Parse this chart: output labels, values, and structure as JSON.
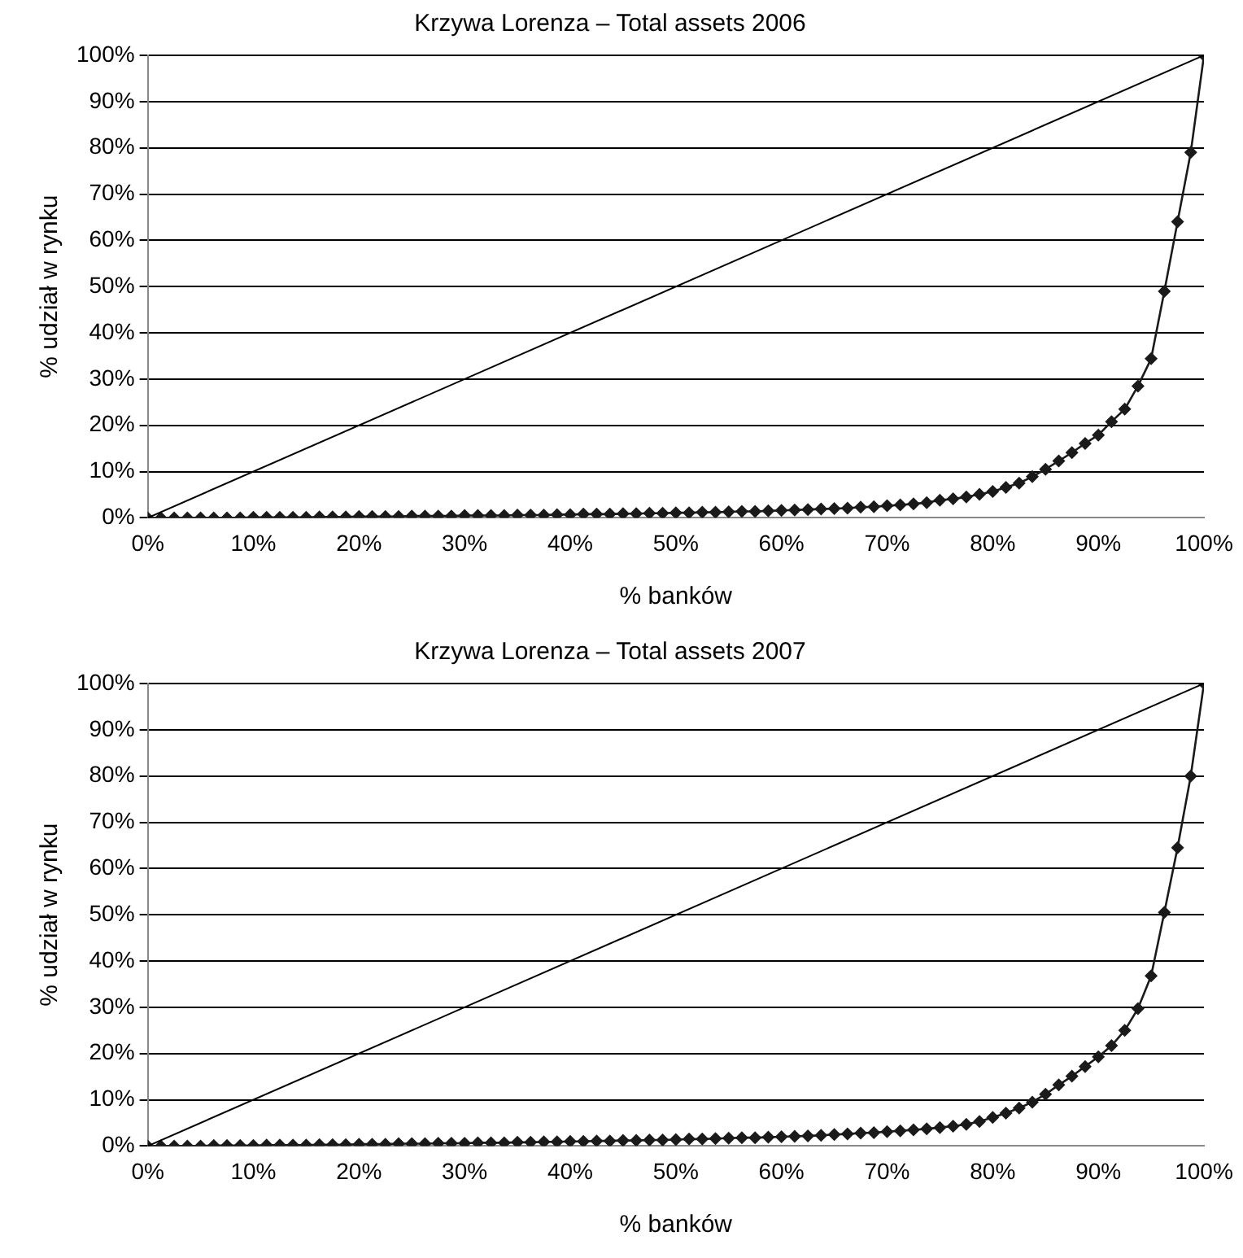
{
  "chart_data": [
    {
      "type": "line",
      "title": "Krzywa Lorenza – Total assets 2006",
      "xlabel": "% banków",
      "ylabel": "% udział w rynku",
      "xlim": [
        0,
        100
      ],
      "ylim": [
        0,
        100
      ],
      "xticks": [
        {
          "value": 0,
          "label": "0%"
        },
        {
          "value": 10,
          "label": "10%"
        },
        {
          "value": 20,
          "label": "20%"
        },
        {
          "value": 30,
          "label": "30%"
        },
        {
          "value": 40,
          "label": "40%"
        },
        {
          "value": 50,
          "label": "50%"
        },
        {
          "value": 60,
          "label": "60%"
        },
        {
          "value": 70,
          "label": "70%"
        },
        {
          "value": 80,
          "label": "80%"
        },
        {
          "value": 90,
          "label": "90%"
        },
        {
          "value": 100,
          "label": "100%"
        }
      ],
      "yticks": [
        {
          "value": 0,
          "label": "0%"
        },
        {
          "value": 10,
          "label": "10%"
        },
        {
          "value": 20,
          "label": "20%"
        },
        {
          "value": 30,
          "label": "30%"
        },
        {
          "value": 40,
          "label": "40%"
        },
        {
          "value": 50,
          "label": "50%"
        },
        {
          "value": 60,
          "label": "60%"
        },
        {
          "value": 70,
          "label": "70%"
        },
        {
          "value": 80,
          "label": "80%"
        },
        {
          "value": 90,
          "label": "90%"
        },
        {
          "value": 100,
          "label": "100%"
        }
      ],
      "grid": "y",
      "legend": false,
      "series": [
        {
          "color": "#000000",
          "marker": "none",
          "x": [
            0,
            100
          ],
          "values": [
            0,
            100
          ]
        },
        {
          "color": "#1a1a1a",
          "marker": "diamond",
          "x": [
            0,
            1.25,
            2.5,
            3.75,
            5,
            6.25,
            7.5,
            8.75,
            10,
            11.25,
            12.5,
            13.75,
            15,
            16.25,
            17.5,
            18.75,
            20,
            21.25,
            22.5,
            23.75,
            25,
            26.25,
            27.5,
            28.75,
            30,
            31.25,
            32.5,
            33.75,
            35,
            36.25,
            37.5,
            38.75,
            40,
            41.25,
            42.5,
            43.75,
            45,
            46.25,
            47.5,
            48.75,
            50,
            51.25,
            52.5,
            53.75,
            55,
            56.25,
            57.5,
            58.75,
            60,
            61.25,
            62.5,
            63.75,
            65,
            66.25,
            67.5,
            68.75,
            70,
            71.25,
            72.5,
            73.75,
            75,
            76.25,
            77.5,
            78.75,
            80,
            81.25,
            82.5,
            83.75,
            85,
            86.25,
            87.5,
            88.75,
            90,
            91.25,
            92.5,
            93.75,
            95,
            96.25,
            97.5,
            98.75,
            100
          ],
          "values": [
            0,
            0,
            0,
            0,
            0,
            0,
            0,
            0,
            0.1,
            0.1,
            0.1,
            0.1,
            0.1,
            0.2,
            0.2,
            0.2,
            0.3,
            0.3,
            0.3,
            0.3,
            0.4,
            0.4,
            0.4,
            0.4,
            0.5,
            0.5,
            0.5,
            0.5,
            0.6,
            0.6,
            0.6,
            0.7,
            0.7,
            0.8,
            0.8,
            0.8,
            0.9,
            0.9,
            1.0,
            1.0,
            1.1,
            1.1,
            1.2,
            1.2,
            1.3,
            1.4,
            1.4,
            1.5,
            1.6,
            1.7,
            1.8,
            1.9,
            2.0,
            2.1,
            2.3,
            2.4,
            2.6,
            2.8,
            3.0,
            3.3,
            3.8,
            4.1,
            4.5,
            5.1,
            5.7,
            6.6,
            7.5,
            8.9,
            10.5,
            12.3,
            14.1,
            16.1,
            17.9,
            20.8,
            23.5,
            28.5,
            34.4,
            49,
            64,
            79,
            100
          ]
        }
      ]
    },
    {
      "type": "line",
      "title": "Krzywa Lorenza – Total assets 2007",
      "xlabel": "% banków",
      "ylabel": "% udział w rynku",
      "xlim": [
        0,
        100
      ],
      "ylim": [
        0,
        100
      ],
      "xticks": [
        {
          "value": 0,
          "label": "0%"
        },
        {
          "value": 10,
          "label": "10%"
        },
        {
          "value": 20,
          "label": "20%"
        },
        {
          "value": 30,
          "label": "30%"
        },
        {
          "value": 40,
          "label": "40%"
        },
        {
          "value": 50,
          "label": "50%"
        },
        {
          "value": 60,
          "label": "60%"
        },
        {
          "value": 70,
          "label": "70%"
        },
        {
          "value": 80,
          "label": "80%"
        },
        {
          "value": 90,
          "label": "90%"
        },
        {
          "value": 100,
          "label": "100%"
        }
      ],
      "yticks": [
        {
          "value": 0,
          "label": "0%"
        },
        {
          "value": 10,
          "label": "10%"
        },
        {
          "value": 20,
          "label": "20%"
        },
        {
          "value": 30,
          "label": "30%"
        },
        {
          "value": 40,
          "label": "40%"
        },
        {
          "value": 50,
          "label": "50%"
        },
        {
          "value": 60,
          "label": "60%"
        },
        {
          "value": 70,
          "label": "70%"
        },
        {
          "value": 80,
          "label": "80%"
        },
        {
          "value": 90,
          "label": "90%"
        },
        {
          "value": 100,
          "label": "100%"
        }
      ],
      "grid": "y",
      "legend": false,
      "series": [
        {
          "color": "#000000",
          "marker": "none",
          "x": [
            0,
            100
          ],
          "values": [
            0,
            100
          ]
        },
        {
          "color": "#1a1a1a",
          "marker": "diamond",
          "x": [
            0,
            1.25,
            2.5,
            3.75,
            5,
            6.25,
            7.5,
            8.75,
            10,
            11.25,
            12.5,
            13.75,
            15,
            16.25,
            17.5,
            18.75,
            20,
            21.25,
            22.5,
            23.75,
            25,
            26.25,
            27.5,
            28.75,
            30,
            31.25,
            32.5,
            33.75,
            35,
            36.25,
            37.5,
            38.75,
            40,
            41.25,
            42.5,
            43.75,
            45,
            46.25,
            47.5,
            48.75,
            50,
            51.25,
            52.5,
            53.75,
            55,
            56.25,
            57.5,
            58.75,
            60,
            61.25,
            62.5,
            63.75,
            65,
            66.25,
            67.5,
            68.75,
            70,
            71.25,
            72.5,
            73.75,
            75,
            76.25,
            77.5,
            78.75,
            80,
            81.25,
            82.5,
            83.75,
            85,
            86.25,
            87.5,
            88.75,
            90,
            91.25,
            92.5,
            93.75,
            95,
            96.25,
            97.5,
            98.75,
            100
          ],
          "values": [
            0,
            0,
            0,
            0,
            0,
            0.1,
            0.1,
            0.1,
            0.1,
            0.2,
            0.2,
            0.2,
            0.2,
            0.3,
            0.3,
            0.3,
            0.4,
            0.4,
            0.4,
            0.5,
            0.5,
            0.5,
            0.6,
            0.6,
            0.6,
            0.7,
            0.7,
            0.7,
            0.8,
            0.8,
            0.9,
            0.9,
            1.0,
            1.0,
            1.1,
            1.1,
            1.2,
            1.2,
            1.3,
            1.3,
            1.4,
            1.5,
            1.5,
            1.6,
            1.7,
            1.8,
            1.8,
            1.9,
            2.0,
            2.1,
            2.2,
            2.3,
            2.5,
            2.6,
            2.8,
            2.9,
            3.1,
            3.3,
            3.5,
            3.7,
            4.0,
            4.3,
            4.7,
            5.3,
            6.2,
            7.1,
            8.2,
            9.5,
            11.2,
            13.2,
            15.1,
            17.2,
            19.3,
            21.7,
            25,
            29.7,
            36.8,
            50.5,
            64.5,
            80,
            100
          ]
        }
      ]
    }
  ]
}
